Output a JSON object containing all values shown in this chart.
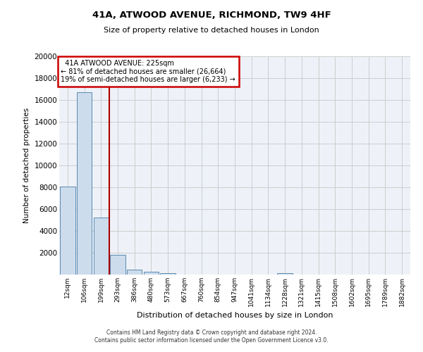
{
  "title1": "41A, ATWOOD AVENUE, RICHMOND, TW9 4HF",
  "title2": "Size of property relative to detached houses in London",
  "xlabel": "Distribution of detached houses by size in London",
  "ylabel": "Number of detached properties",
  "bar_labels": [
    "12sqm",
    "106sqm",
    "199sqm",
    "293sqm",
    "386sqm",
    "480sqm",
    "573sqm",
    "667sqm",
    "760sqm",
    "854sqm",
    "947sqm",
    "1041sqm",
    "1134sqm",
    "1228sqm",
    "1321sqm",
    "1415sqm",
    "1508sqm",
    "1602sqm",
    "1695sqm",
    "1789sqm",
    "1882sqm"
  ],
  "bar_values": [
    8050,
    16700,
    5200,
    1800,
    480,
    230,
    120,
    0,
    0,
    0,
    0,
    0,
    0,
    130,
    0,
    0,
    0,
    0,
    0,
    0,
    0
  ],
  "bar_color": "#ccdcec",
  "bar_edge_color": "#5a8ab0",
  "property_line_x": 2.5,
  "annotation_text": "  41A ATWOOD AVENUE: 225sqm\n← 81% of detached houses are smaller (26,664)\n19% of semi-detached houses are larger (6,233) →",
  "annotation_box_color": "#ffffff",
  "annotation_box_edge": "#cc0000",
  "ylim": [
    0,
    20000
  ],
  "yticks": [
    0,
    2000,
    4000,
    6000,
    8000,
    10000,
    12000,
    14000,
    16000,
    18000,
    20000
  ],
  "grid_color": "#cccccc",
  "bg_color": "#eef2f8",
  "footer1": "Contains HM Land Registry data © Crown copyright and database right 2024.",
  "footer2": "Contains public sector information licensed under the Open Government Licence v3.0."
}
